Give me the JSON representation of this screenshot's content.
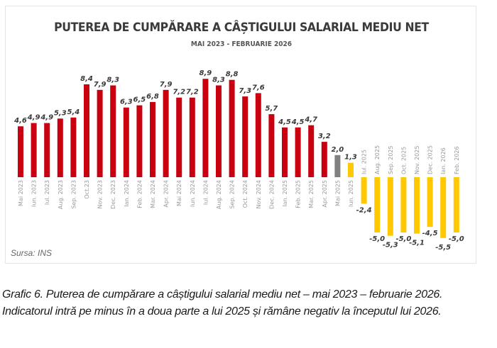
{
  "chart_data": {
    "type": "bar",
    "title": "PUTEREA DE CUMPĂRARE A CÂȘTIGULUI SALARIAL MEDIU NET",
    "subtitle": "MAI 2023 - FEBRUARIE 2026",
    "xlabel": "",
    "ylabel": "",
    "ylim": [
      -6,
      9.5
    ],
    "grid": false,
    "legend": "none",
    "categories": [
      "Mai 2023",
      "Iun. 2023",
      "Iul. 2023",
      "Aug. 2023",
      "Sep. 2023",
      "Oct.23",
      "Nov. 2023",
      "Dec. 2023",
      "Ian. 2024",
      "Feb. 2024",
      "Mar. 2024",
      "Apr. 2024",
      "Mai 2024",
      "Iun. 2024",
      "Iul. 2024",
      "Aug. 2024",
      "Sep. 2024",
      "Oct. 2024",
      "Nov. 2024",
      "Dec. 2024",
      "Ian. 2025",
      "Feb. 2025",
      "Mar. 2025",
      "Apr. 2025",
      "Mai 2025",
      "Iun. 2025",
      "Iul. 2025",
      "Aug. 2025",
      "Sep. 2025",
      "Oct. 2025",
      "Nov. 2025",
      "Dec. 2025",
      "Ian. 2026",
      "Feb. 2026"
    ],
    "values": [
      4.6,
      4.9,
      4.9,
      5.3,
      5.4,
      8.4,
      7.9,
      8.3,
      6.3,
      6.5,
      6.8,
      7.9,
      7.2,
      7.2,
      8.9,
      8.3,
      8.8,
      7.3,
      7.6,
      5.7,
      4.5,
      4.5,
      4.7,
      3.2,
      2.0,
      1.3,
      -2.4,
      -5.0,
      -5.3,
      -5.0,
      -5.1,
      -4.5,
      -5.5,
      -5.0
    ],
    "data_labels": [
      "4,6",
      "4,9",
      "4,9",
      "5,3",
      "5,4",
      "8,4",
      "7,9",
      "8,3",
      "6,3",
      "6,5",
      "6,8",
      "7,9",
      "7,2",
      "7,2",
      "8,9",
      "8,3",
      "8,8",
      "7,3",
      "7,6",
      "5,7",
      "4,5",
      "4,5",
      "4,7",
      "3,2",
      "2,0",
      "1,3",
      "-2,4",
      "-5,0",
      "-5,3",
      "-5,0",
      "-5,1",
      "-4,5",
      "-5,5",
      "-5,0"
    ],
    "bar_colors": [
      "#c8000f",
      "#c8000f",
      "#c8000f",
      "#c8000f",
      "#c8000f",
      "#c8000f",
      "#c8000f",
      "#c8000f",
      "#c8000f",
      "#c8000f",
      "#c8000f",
      "#c8000f",
      "#c8000f",
      "#c8000f",
      "#c8000f",
      "#c8000f",
      "#c8000f",
      "#c8000f",
      "#c8000f",
      "#c8000f",
      "#c8000f",
      "#c8000f",
      "#c8000f",
      "#c8000f",
      "#808080",
      "#ffc800",
      "#ffc800",
      "#ffc800",
      "#ffc800",
      "#ffc800",
      "#ffc800",
      "#ffc800",
      "#ffc800",
      "#ffc800"
    ]
  },
  "source": "Sursa: INS",
  "caption": "Grafic 6. Puterea de cumpărare a câștigului salarial mediu net – mai 2023 – februarie 2026. Indicatorul intră pe minus în a doua parte a lui 2025 și rămâne negativ la începutul lui 2026."
}
